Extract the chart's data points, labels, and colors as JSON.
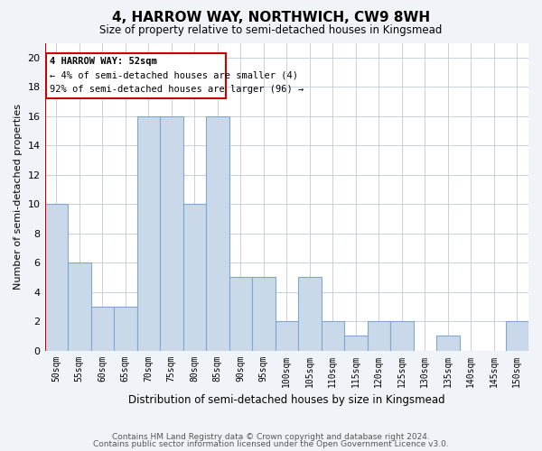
{
  "title": "4, HARROW WAY, NORTHWICH, CW9 8WH",
  "subtitle": "Size of property relative to semi-detached houses in Kingsmead",
  "xlabel": "Distribution of semi-detached houses by size in Kingsmead",
  "ylabel": "Number of semi-detached properties",
  "categories": [
    "50sqm",
    "55sqm",
    "60sqm",
    "65sqm",
    "70sqm",
    "75sqm",
    "80sqm",
    "85sqm",
    "90sqm",
    "95sqm",
    "100sqm",
    "105sqm",
    "110sqm",
    "115sqm",
    "120sqm",
    "125sqm",
    "130sqm",
    "135sqm",
    "140sqm",
    "145sqm",
    "150sqm"
  ],
  "values": [
    10,
    6,
    3,
    3,
    16,
    16,
    10,
    16,
    5,
    5,
    2,
    5,
    2,
    1,
    2,
    2,
    0,
    1,
    0,
    0,
    2
  ],
  "bar_color": "#c9d9ea",
  "bar_edgecolor": "#7fa8cc",
  "highlight_color": "#cc0000",
  "annotation_title": "4 HARROW WAY: 52sqm",
  "annotation_line1": "← 4% of semi-detached houses are smaller (4)",
  "annotation_line2": "92% of semi-detached houses are larger (96) →",
  "ylim": [
    0,
    21
  ],
  "yticks": [
    0,
    2,
    4,
    6,
    8,
    10,
    12,
    14,
    16,
    18,
    20
  ],
  "footnote1": "Contains HM Land Registry data © Crown copyright and database right 2024.",
  "footnote2": "Contains public sector information licensed under the Open Government Licence v3.0.",
  "bg_color": "#f0f4f8",
  "plot_bg_color": "#ffffff",
  "grid_color": "#c8d0dc"
}
